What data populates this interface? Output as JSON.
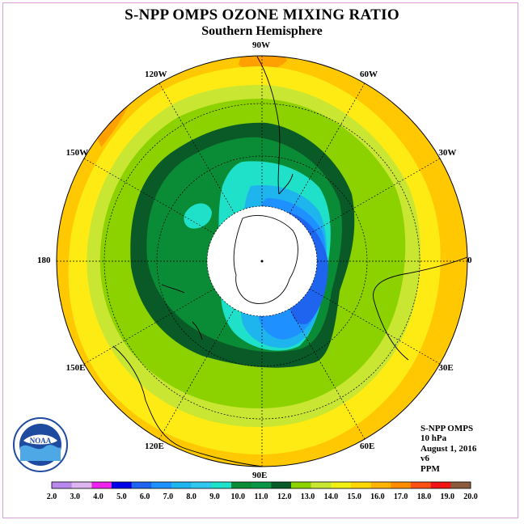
{
  "title": "S-NPP OMPS OZONE MIXING RATIO",
  "subtitle": "Southern Hemisphere",
  "longitude_labels": [
    {
      "text": "90W",
      "lon": -90
    },
    {
      "text": "60W",
      "lon": -60
    },
    {
      "text": "30W",
      "lon": -30
    },
    {
      "text": "0",
      "lon": 0
    },
    {
      "text": "30E",
      "lon": 30
    },
    {
      "text": "60E",
      "lon": 60
    },
    {
      "text": "90E",
      "lon": 90
    },
    {
      "text": "120E",
      "lon": 120
    },
    {
      "text": "150E",
      "lon": 150
    },
    {
      "text": "180",
      "lon": 180
    },
    {
      "text": "150W",
      "lon": -150
    },
    {
      "text": "120W",
      "lon": -120
    }
  ],
  "info": {
    "instrument": "S-NPP OMPS",
    "level": "10 hPa",
    "date": "August 1, 2016",
    "version": "v6",
    "units": "PPM"
  },
  "colorbar": {
    "values": [
      "2.0",
      "3.0",
      "4.0",
      "5.0",
      "6.0",
      "7.0",
      "8.0",
      "9.0",
      "10.0",
      "11.0",
      "12.0",
      "13.0",
      "14.0",
      "15.0",
      "16.0",
      "17.0",
      "18.0",
      "19.0",
      "20.0"
    ],
    "colors": [
      "#b987ee",
      "#dcb4f0",
      "#ee22ee",
      "#0000e6",
      "#1e64ee",
      "#1e90ff",
      "#1eb4ee",
      "#2ec8f0",
      "#1fe0c8",
      "#0a8c37",
      "#0a9646",
      "#0a5a28",
      "#8cd200",
      "#c8e632",
      "#f0f014",
      "#ffd700",
      "#ffb400",
      "#ff8c00",
      "#ff5014",
      "#f01414",
      "#8b5a3c"
    ]
  },
  "logo": {
    "text": "NOAA"
  }
}
